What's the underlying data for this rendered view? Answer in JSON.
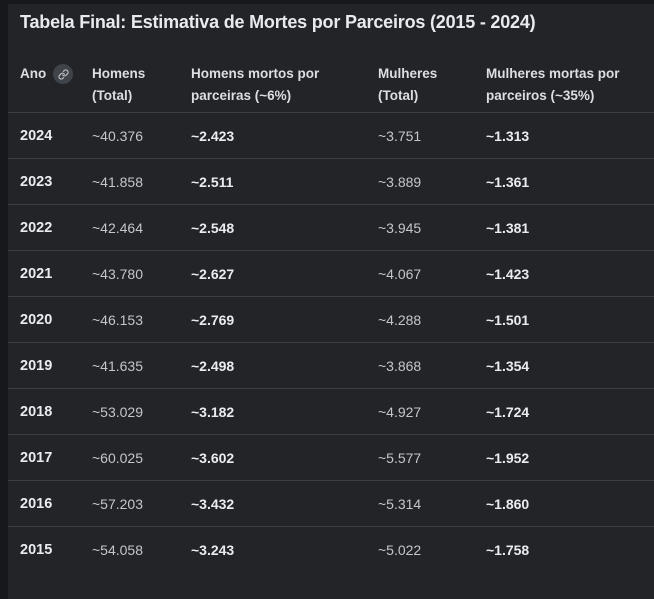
{
  "chart_data": {
    "type": "table",
    "title": "Tabela Final: Estimativa de Mortes por Parceiros (2015 - 2024)",
    "columns": [
      "Ano",
      "Homens (Total)",
      "Homens mortos por parceiras (~6%)",
      "Mulheres (Total)",
      "Mulheres mortas por parceiros (~35%)"
    ],
    "rows": [
      [
        "2024",
        "~40.376",
        "~2.423",
        "~3.751",
        "~1.313"
      ],
      [
        "2023",
        "~41.858",
        "~2.511",
        "~3.889",
        "~1.361"
      ],
      [
        "2022",
        "~42.464",
        "~2.548",
        "~3.945",
        "~1.381"
      ],
      [
        "2021",
        "~43.780",
        "~2.627",
        "~4.067",
        "~1.423"
      ],
      [
        "2020",
        "~46.153",
        "~2.769",
        "~4.288",
        "~1.501"
      ],
      [
        "2019",
        "~41.635",
        "~2.498",
        "~3.868",
        "~1.354"
      ],
      [
        "2018",
        "~53.029",
        "~3.182",
        "~4.927",
        "~1.724"
      ],
      [
        "2017",
        "~60.025",
        "~3.602",
        "~5.577",
        "~1.952"
      ],
      [
        "2016",
        "~57.203",
        "~3.432",
        "~5.314",
        "~1.860"
      ],
      [
        "2015",
        "~54.058",
        "~3.243",
        "~5.022",
        "~1.758"
      ]
    ],
    "layout": {
      "grid": "horizontal-row-separators",
      "bold_columns": [
        0,
        2,
        4
      ]
    }
  },
  "icons": {
    "ano_header_icon": "link-icon"
  },
  "colors": {
    "page_bg": "#17181c",
    "card_bg": "#222428",
    "separator": "#3a3d43",
    "title": "#e8eaed",
    "header_text": "#dcdee2",
    "cell_regular": "#c3c6cb",
    "cell_bold": "#eaecef",
    "badge_bg": "#3f434a",
    "badge_icon": "#c6c9cd"
  }
}
